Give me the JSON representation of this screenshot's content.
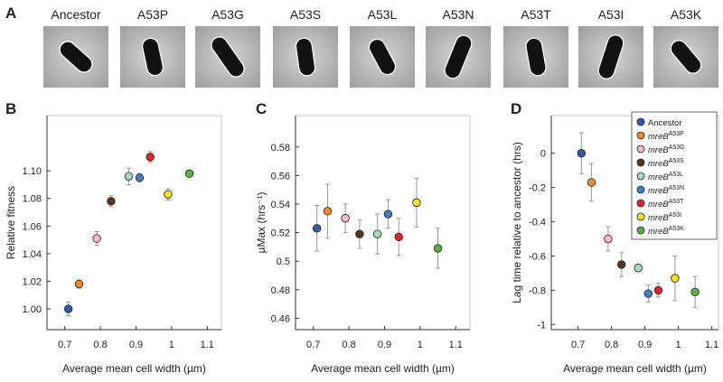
{
  "panel_a": {
    "panel_label": "A",
    "labels": [
      "Ancestor",
      "A53P",
      "A53G",
      "A53S",
      "A53L",
      "A53N",
      "A53T",
      "A53I",
      "A53K"
    ]
  },
  "chart_data": [
    {
      "type": "scatter",
      "panel_label": "B",
      "xlabel": "Average mean cell width (µm)",
      "ylabel": "Relative fitness",
      "xlim": [
        0.65,
        1.14
      ],
      "ylim": [
        0.985,
        1.14
      ],
      "xticks": [
        0.7,
        0.8,
        0.9,
        1,
        1.1
      ],
      "yticks": [
        {
          "value": 1,
          "label": "1.00"
        },
        {
          "value": 1.02,
          "label": "1.02"
        },
        {
          "value": 1.04,
          "label": "1.04"
        },
        {
          "value": 1.06,
          "label": "1.06"
        },
        {
          "value": 1.08,
          "label": "1.08"
        },
        {
          "value": 1.1,
          "label": "1.10"
        }
      ],
      "x": [
        0.71,
        0.74,
        0.79,
        0.83,
        0.88,
        0.91,
        0.94,
        0.99,
        1.05
      ],
      "values": [
        1.0,
        1.018,
        1.051,
        1.078,
        1.096,
        1.095,
        1.11,
        1.083,
        1.098
      ],
      "errors": [
        0.005,
        0.003,
        0.005,
        0.004,
        0.006,
        0.003,
        0.004,
        0.004,
        0.002
      ],
      "x_errors": [
        0.005,
        0.006,
        0.005,
        0.006,
        0.008,
        0.01,
        0.006,
        0.01,
        0.006
      ],
      "colors": [
        "#3b58a8",
        "#f0892a",
        "#f5b8cc",
        "#5b3518",
        "#a9d9bb",
        "#3f7fc2",
        "#e0232c",
        "#f6e324",
        "#5cb043"
      ]
    },
    {
      "type": "scatter",
      "panel_label": "C",
      "xlabel": "Average mean cell width (µm)",
      "ylabel": "µMax (hrs⁻¹)",
      "xlim": [
        0.65,
        1.14
      ],
      "ylim": [
        0.452,
        0.602
      ],
      "xticks": [
        0.7,
        0.8,
        0.9,
        1,
        1.1
      ],
      "yticks": [
        0.46,
        0.48,
        0.5,
        0.52,
        0.54,
        0.56,
        0.58
      ],
      "x": [
        0.71,
        0.74,
        0.79,
        0.83,
        0.88,
        0.91,
        0.94,
        0.99,
        1.05
      ],
      "values": [
        0.523,
        0.535,
        0.53,
        0.519,
        0.519,
        0.533,
        0.517,
        0.541,
        0.509
      ],
      "errors": [
        0.016,
        0.019,
        0.01,
        0.01,
        0.014,
        0.01,
        0.013,
        0.017,
        0.014
      ],
      "x_errors": [
        0.005,
        0.006,
        0.005,
        0.006,
        0.008,
        0.01,
        0.006,
        0.01,
        0.006
      ],
      "colors": [
        "#3b58a8",
        "#f0892a",
        "#f5b8cc",
        "#5b3518",
        "#a9d9bb",
        "#3f7fc2",
        "#e0232c",
        "#f6e324",
        "#5cb043"
      ]
    },
    {
      "type": "scatter",
      "panel_label": "D",
      "xlabel": "Average mean cell width (µm)",
      "ylabel": "Lag time relative to ancestor (hrs)",
      "xlim": [
        0.62,
        1.12
      ],
      "ylim": [
        -1.03,
        0.22
      ],
      "xticks": [
        0.7,
        0.8,
        0.9,
        1,
        1.1
      ],
      "yticks": [
        -1,
        -0.8,
        -0.6,
        -0.4,
        -0.2,
        0
      ],
      "x": [
        0.71,
        0.74,
        0.79,
        0.83,
        0.88,
        0.91,
        0.94,
        0.99,
        1.05
      ],
      "values": [
        0.0,
        -0.17,
        -0.5,
        -0.65,
        -0.67,
        -0.82,
        -0.8,
        -0.73,
        -0.81
      ],
      "errors": [
        0.12,
        0.11,
        0.07,
        0.07,
        0.02,
        0.05,
        0.04,
        0.13,
        0.09
      ],
      "x_errors": [
        0.005,
        0.006,
        0.005,
        0.006,
        0.008,
        0.01,
        0.006,
        0.01,
        0.006
      ],
      "colors": [
        "#3b58a8",
        "#f0892a",
        "#f5b8cc",
        "#5b3518",
        "#a9d9bb",
        "#3f7fc2",
        "#e0232c",
        "#f6e324",
        "#5cb043"
      ],
      "legend_position": "upper right",
      "legend": [
        {
          "name": "Ancestor"
        },
        {
          "name": "mreB",
          "sup": "A53P"
        },
        {
          "name": "mreB",
          "sup": "A53G"
        },
        {
          "name": "mreB",
          "sup": "A53S"
        },
        {
          "name": "mreB",
          "sup": "A53L"
        },
        {
          "name": "mreB",
          "sup": "A53N"
        },
        {
          "name": "mreB",
          "sup": "A53T"
        },
        {
          "name": "mreB",
          "sup": "A53I"
        },
        {
          "name": "mreB",
          "sup": "A53K"
        }
      ]
    }
  ]
}
